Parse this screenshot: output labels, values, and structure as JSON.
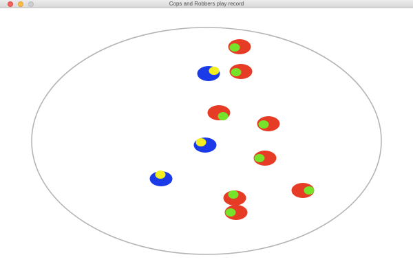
{
  "window": {
    "title": "Cops and Robbers play record",
    "controls": {
      "close_color": "#fc605b",
      "minimize_color": "#fdbc40",
      "maximize_color": "#cfcfcf"
    }
  },
  "arena": {
    "shape": "ellipse",
    "border_color": "#b4b4b4",
    "background": "#ffffff"
  },
  "pieces": {
    "cop_body_color": "#1c3be8",
    "cop_marker_color": "#f3ee1f",
    "robber_body_color": "#e63b25",
    "robber_marker_color": "#77e22a",
    "cops": [
      {
        "id": "cop-1"
      },
      {
        "id": "cop-2"
      },
      {
        "id": "cop-3"
      }
    ],
    "robbers": [
      {
        "id": "robber-1"
      },
      {
        "id": "robber-2"
      },
      {
        "id": "robber-3"
      },
      {
        "id": "robber-4"
      },
      {
        "id": "robber-5"
      },
      {
        "id": "robber-6"
      },
      {
        "id": "robber-7"
      },
      {
        "id": "robber-8"
      },
      {
        "id": "robber-9"
      }
    ]
  }
}
